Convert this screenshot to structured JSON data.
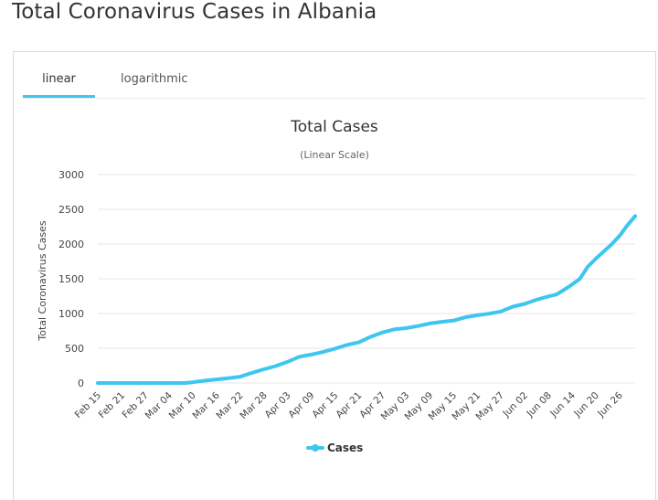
{
  "page_title": "Total Coronavirus Cases in Albania",
  "tabs": [
    {
      "label": "linear",
      "active": true
    },
    {
      "label": "logarithmic",
      "active": false
    }
  ],
  "colors": {
    "series": "#3ec6f0",
    "tab_accent": "#3ec6f0",
    "grid": "#e6e6e6"
  },
  "chart_data": {
    "type": "line",
    "title": "Total Cases",
    "subtitle": "(Linear Scale)",
    "xlabel": "",
    "ylabel": "Total Coronavirus Cases",
    "ylim": [
      0,
      3000
    ],
    "yticks": [
      0,
      500,
      1000,
      1500,
      2000,
      2500,
      3000
    ],
    "x_tick_labels": [
      "Feb 15",
      "Feb 21",
      "Feb 27",
      "Mar 04",
      "Mar 10",
      "Mar 16",
      "Mar 22",
      "Mar 28",
      "Apr 03",
      "Apr 09",
      "Apr 15",
      "Apr 21",
      "Apr 27",
      "May 03",
      "May 09",
      "May 15",
      "May 21",
      "May 27",
      "Jun 02",
      "Jun 08",
      "Jun 14",
      "Jun 20",
      "Jun 26"
    ],
    "grid": true,
    "legend": "bottom-center",
    "x": [
      "Feb 15",
      "Feb 21",
      "Feb 27",
      "Mar 04",
      "Mar 08",
      "Mar 10",
      "Mar 13",
      "Mar 16",
      "Mar 19",
      "Mar 22",
      "Mar 25",
      "Mar 28",
      "Mar 31",
      "Apr 03",
      "Apr 06",
      "Apr 09",
      "Apr 12",
      "Apr 15",
      "Apr 18",
      "Apr 21",
      "Apr 24",
      "Apr 27",
      "Apr 30",
      "May 03",
      "May 06",
      "May 09",
      "May 12",
      "May 15",
      "May 18",
      "May 21",
      "May 24",
      "May 27",
      "May 30",
      "Jun 02",
      "Jun 05",
      "Jun 08",
      "Jun 10",
      "Jun 12",
      "Jun 14",
      "Jun 16",
      "Jun 18",
      "Jun 20",
      "Jun 22",
      "Jun 24",
      "Jun 26",
      "Jun 28",
      "Jun 30"
    ],
    "series": [
      {
        "name": "Cases",
        "values": [
          0,
          0,
          0,
          0,
          0,
          10,
          33,
          51,
          70,
          89,
          146,
          197,
          243,
          304,
          377,
          409,
          446,
          494,
          548,
          584,
          663,
          726,
          773,
          789,
          820,
          856,
          880,
          898,
          946,
          975,
          998,
          1029,
          1099,
          1138,
          1197,
          1246,
          1272,
          1341,
          1416,
          1500,
          1672,
          1788,
          1891,
          1995,
          2114,
          2269,
          2402
        ]
      }
    ]
  }
}
